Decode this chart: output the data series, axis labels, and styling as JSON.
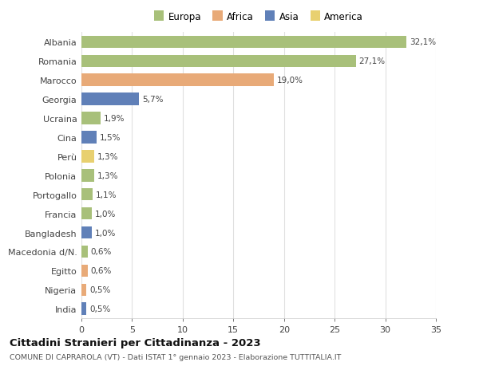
{
  "countries": [
    "Albania",
    "Romania",
    "Marocco",
    "Georgia",
    "Ucraina",
    "Cina",
    "Perù",
    "Polonia",
    "Portogallo",
    "Francia",
    "Bangladesh",
    "Macedonia d/N.",
    "Egitto",
    "Nigeria",
    "India"
  ],
  "values": [
    32.1,
    27.1,
    19.0,
    5.7,
    1.9,
    1.5,
    1.3,
    1.3,
    1.1,
    1.0,
    1.0,
    0.6,
    0.6,
    0.5,
    0.5
  ],
  "labels": [
    "32,1%",
    "27,1%",
    "19,0%",
    "5,7%",
    "1,9%",
    "1,5%",
    "1,3%",
    "1,3%",
    "1,1%",
    "1,0%",
    "1,0%",
    "0,6%",
    "0,6%",
    "0,5%",
    "0,5%"
  ],
  "continents": [
    "Europa",
    "Europa",
    "Africa",
    "Asia",
    "Europa",
    "Asia",
    "America",
    "Europa",
    "Europa",
    "Europa",
    "Asia",
    "Europa",
    "Africa",
    "Africa",
    "Asia"
  ],
  "continent_colors": {
    "Europa": "#a8c07a",
    "Africa": "#e8aa78",
    "Asia": "#6080b8",
    "America": "#e8d070"
  },
  "legend_order": [
    "Europa",
    "Africa",
    "Asia",
    "America"
  ],
  "title": "Cittadini Stranieri per Cittadinanza - 2023",
  "subtitle": "COMUNE DI CAPRAROLA (VT) - Dati ISTAT 1° gennaio 2023 - Elaborazione TUTTITALIA.IT",
  "xlim": [
    0,
    35
  ],
  "xticks": [
    0,
    5,
    10,
    15,
    20,
    25,
    30,
    35
  ],
  "bg_color": "#ffffff",
  "grid_color": "#e0e0e0"
}
